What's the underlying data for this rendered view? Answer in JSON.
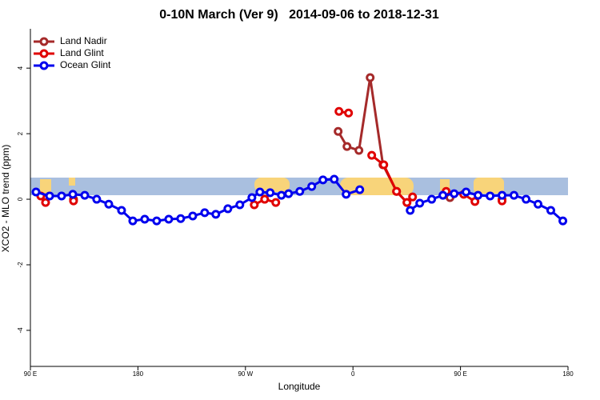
{
  "chart_data": {
    "type": "line",
    "title": "0-10N March (Ver 9)   2014-09-06 to 2018-12-31",
    "x_label": "Longitude",
    "y_label": "XCO2 - MLO trend (ppm)",
    "xlim": [
      90,
      540
    ],
    "ylim": [
      -5.1,
      5.2
    ],
    "xticks": [
      {
        "value": 90,
        "label": "90 E"
      },
      {
        "value": 180,
        "label": "180"
      },
      {
        "value": 270,
        "label": "90 W"
      },
      {
        "value": 360,
        "label": "0"
      },
      {
        "value": 450,
        "label": "90 E"
      },
      {
        "value": 540,
        "label": "180"
      }
    ],
    "yticks": [
      -4,
      -2,
      0,
      2,
      4
    ],
    "legend": "top-left",
    "series": [
      {
        "name": "Land Nadir",
        "color": "#a52a2a",
        "x": [
          126.1,
          null,
          347.6,
          355,
          365,
          374.4,
          385.1,
          396.5,
          405.2,
          null,
          441.2,
          null,
          484.8
        ],
        "values": [
          0,
          null,
          2.07,
          1.61,
          1.49,
          3.71,
          1.05,
          0.24,
          -0.1,
          null,
          0.05,
          null,
          0
        ]
      },
      {
        "name": "Land Glint",
        "color": "#e00000",
        "x": [
          98.7,
          102.7,
          null,
          126.1,
          null,
          277.4,
          286.1,
          295.4,
          null,
          348.3,
          356.3,
          null,
          375.7,
          385.8,
          396.5,
          405.2,
          409.9,
          null,
          438,
          452.7,
          462.1,
          null,
          484.8
        ],
        "values": [
          0.1,
          -0.1,
          null,
          -0.05,
          null,
          -0.17,
          0,
          -0.1,
          null,
          2.68,
          2.63,
          null,
          1.34,
          1.05,
          0.24,
          -0.1,
          0.07,
          null,
          0.24,
          0.15,
          -0.07,
          null,
          -0.05
        ]
      },
      {
        "name": "Ocean Glint",
        "color": "#0000ee",
        "x": [
          94.7,
          106.1,
          116.1,
          125.5,
          135.5,
          145.5,
          155.6,
          166.3,
          175.7,
          185.7,
          195.7,
          205.8,
          215.8,
          225.9,
          235.9,
          245.2,
          255.3,
          265.3,
          275.4,
          282.1,
          290.7,
          300.1,
          306.1,
          315.5,
          325.5,
          334.9,
          344.3,
          354.3,
          365.7,
          null,
          407.9,
          415.9,
          425.9,
          435.3,
          444.7,
          454.7,
          464.7,
          474.8,
          484.8,
          494.8,
          504.9,
          514.9,
          525.6,
          535.7
        ],
        "values": [
          0.22,
          0.1,
          0.1,
          0.15,
          0.12,
          0,
          -0.15,
          -0.34,
          -0.66,
          -0.61,
          -0.66,
          -0.61,
          -0.59,
          -0.51,
          -0.41,
          -0.46,
          -0.29,
          -0.17,
          0.05,
          0.22,
          0.2,
          0.12,
          0.17,
          0.24,
          0.39,
          0.59,
          0.61,
          0.15,
          0.29,
          null,
          -0.34,
          -0.12,
          0,
          0.12,
          0.17,
          0.22,
          0.12,
          0.1,
          0.12,
          0.12,
          0,
          -0.15,
          -0.34,
          -0.66
        ]
      }
    ]
  }
}
